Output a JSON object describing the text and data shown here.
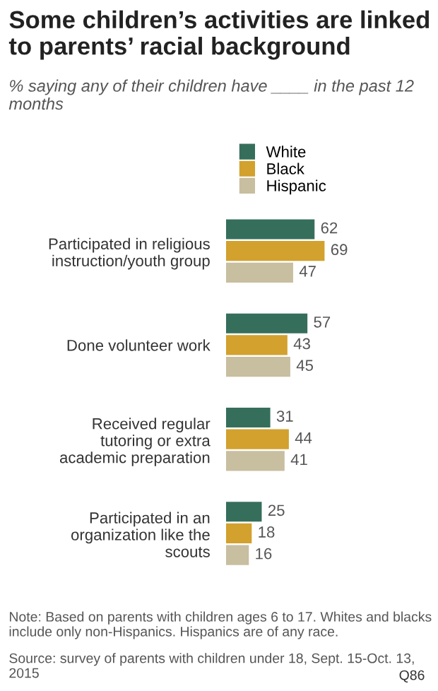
{
  "chart_data": {
    "type": "bar",
    "orientation": "horizontal",
    "title": "Some children’s activities are linked to parents’ racial background",
    "subtitle": "% saying any of their children have ____ in the past 12 months",
    "categories": [
      "Participated in religious\ninstruction/youth group",
      "Done volunteer work",
      "Received regular\ntutoring or extra\nacademic preparation",
      "Participated in an\norganization like the\nscouts"
    ],
    "series": [
      {
        "name": "White",
        "color": "#356f5c",
        "values": [
          62,
          57,
          31,
          25
        ]
      },
      {
        "name": "Black",
        "color": "#d2a12e",
        "values": [
          69,
          43,
          44,
          18
        ]
      },
      {
        "name": "Hispanic",
        "color": "#c8bea0",
        "values": [
          47,
          45,
          41,
          16
        ]
      }
    ],
    "data_labels": true,
    "legend": "top",
    "grid": false,
    "annotations": [
      "Note: Based on parents with children ages 6 to 17. Whites and blacks include only non-Hispanics. Hispanics are of any race.",
      "Source: survey of parents with children under 18, Sept. 15-Oct. 13, 2015",
      "Q86"
    ]
  }
}
